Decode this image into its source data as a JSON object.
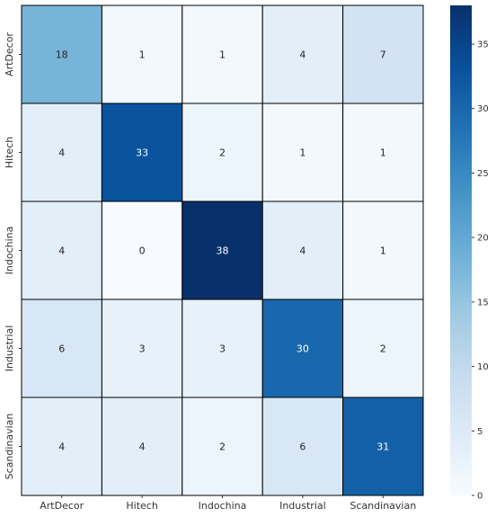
{
  "chart_data": {
    "type": "heatmap",
    "title": "",
    "xlabel": "",
    "ylabel": "",
    "x_categories": [
      "ArtDecor",
      "Hitech",
      "Indochina",
      "Industrial",
      "Scandinavian"
    ],
    "y_categories": [
      "ArtDecor",
      "Hitech",
      "Indochina",
      "Industrial",
      "Scandinavian"
    ],
    "values": [
      [
        18,
        1,
        1,
        4,
        7
      ],
      [
        4,
        33,
        2,
        1,
        1
      ],
      [
        4,
        0,
        38,
        4,
        1
      ],
      [
        6,
        3,
        3,
        30,
        2
      ],
      [
        4,
        4,
        2,
        6,
        31
      ]
    ],
    "annotate": true,
    "colormap": "Blues",
    "colorbar": {
      "range": [
        0,
        38
      ],
      "ticks": [
        0,
        5,
        10,
        15,
        20,
        25,
        30,
        35
      ]
    },
    "colors": {
      "low": "#f7fbff",
      "high": "#08306b",
      "text_dark": "#262626",
      "text_light": "#ffffff"
    }
  }
}
